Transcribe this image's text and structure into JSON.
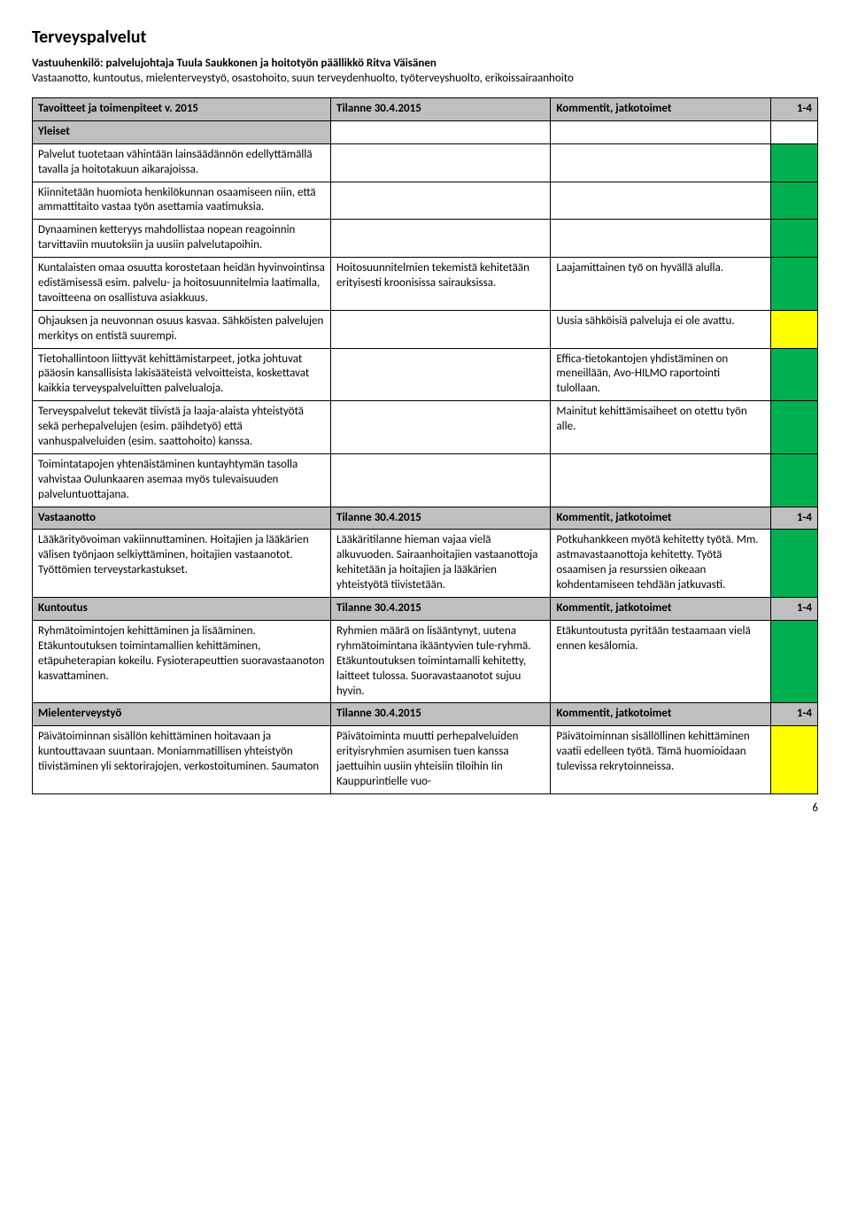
{
  "title": "Terveyspalvelut",
  "responsible_label": "Vastuuhenkilö: palvelujohtaja Tuula Saukkonen ja hoitotyön päällikkö Ritva Väisänen",
  "subtitle": "Vastaanotto, kuntoutus, mielenterveystyö, osastohoito, suun terveydenhuolto, työterveyshuolto, erikoissairaanhoito",
  "header": {
    "col1": "Tavoitteet ja toimenpiteet v. 2015",
    "col2": "Tilanne 30.4.2015",
    "col3": "Kommentit, jatkotoimet",
    "col4": "1-4"
  },
  "section_yleiset": "Yleiset",
  "yleiset_rows": [
    {
      "a": "Palvelut tuotetaan vähintään lainsäädännön edellyttämällä tavalla ja hoitotakuun aikarajoissa.",
      "b": "",
      "c": "",
      "color": "green"
    },
    {
      "a": "Kiinnitetään huomiota henkilökunnan osaamiseen niin, että ammattitaito vastaa työn asettamia vaatimuksia.",
      "b": "",
      "c": "",
      "color": "green"
    },
    {
      "a": "Dynaaminen ketteryys mahdollistaa nopean reagoinnin tarvittaviin muutoksiin ja uusiin palvelutapoihin.",
      "b": "",
      "c": "",
      "color": "green"
    },
    {
      "a": "Kuntalaisten omaa osuutta korostetaan heidän hyvinvointinsa edistämisessä esim. palvelu- ja hoitosuunnitelmia laatimalla, tavoitteena on osallistuva asiakkuus.",
      "b": "Hoitosuunnitelmien tekemistä kehitetään erityisesti kroonisissa sairauksissa.",
      "c": "Laajamittainen työ on hyvällä alulla.",
      "color": "green"
    },
    {
      "a": "Ohjauksen ja neuvonnan osuus kasvaa. Sähköisten palvelujen merkitys on entistä suurempi.",
      "b": "",
      "c": "Uusia sähköisiä palveluja ei ole avattu.",
      "color": "yellow"
    },
    {
      "a": "Tietohallintoon liittyvät kehittämistarpeet, jotka johtuvat pääosin kansallisista lakisääteistä velvoitteista, koskettavat kaikkia terveyspalveluitten palvelualoja.",
      "b": "",
      "c": "Effica-tietokantojen yhdistäminen on meneillään, Avo-HILMO raportointi tulollaan.",
      "color": "green"
    },
    {
      "a": "Terveyspalvelut tekevät tiivistä ja laaja-alaista yhteistyötä sekä perhepalvelujen (esim. päihdetyö) että vanhuspalveluiden (esim. saattohoito) kanssa.",
      "b": "",
      "c": "Mainitut kehittämisaiheet on otettu työn alle.",
      "color": "green"
    },
    {
      "a": "Toimintatapojen yhtenäistäminen kuntayhtymän tasolla vahvistaa Oulunkaaren asemaa myös tulevaisuuden palveluntuottajana.",
      "b": "",
      "c": "",
      "color": "green"
    }
  ],
  "section_vastaanotto": "Vastaanotto",
  "vastaanotto": {
    "a": "Lääkärityövoiman vakiinnuttaminen. Hoitajien ja lääkärien välisen työnjaon selkiyttäminen, hoitajien vastaanotot. Työttömien terveystarkastukset.",
    "b": "Lääkäritilanne hieman vajaa vielä alkuvuoden. Sairaanhoitajien vastaanottoja kehitetään ja hoitajien ja lääkärien yhteistyötä tiivistetään.",
    "c": "Potkuhankkeen myötä kehitetty työtä. Mm. astmavastaanottoja kehitetty. Työtä osaamisen ja resurssien oikeaan kohdentamiseen tehdään jatkuvasti.",
    "color": "green"
  },
  "section_kuntoutus": "Kuntoutus",
  "kuntoutus": {
    "a": "Ryhmätoimintojen kehittäminen ja lisääminen. Etäkuntoutuksen toimintamallien kehittäminen, etäpuheterapian kokeilu. Fysioterapeuttien suoravastaanoton kasvattaminen.",
    "b": "Ryhmien määrä on lisääntynyt, uutena ryhmätoimintana ikääntyvien tule-ryhmä. Etäkuntoutuksen toimintamalli kehitetty, laitteet tulossa. Suoravastaanotot sujuu hyvin.",
    "c": "Etäkuntoutusta pyritään testaamaan vielä ennen kesälomia.",
    "color": "green"
  },
  "section_mielenterveys": "Mielenterveystyö",
  "mielenterveys": {
    "a": "Päivätoiminnan sisällön kehittäminen hoitavaan ja kuntouttavaan suuntaan. Moniammatillisen yhteistyön tiivistäminen yli sektorirajojen, verkostoituminen. Saumaton",
    "b": "Päivätoiminta muutti perhepalveluiden erityisryhmien asumisen tuen kanssa jaettuihin uusiin yhteisiin tiloihin Iin Kauppurintielle vuo-",
    "c": "Päivätoiminnan sisällöllinen kehittäminen vaatii edelleen työtä. Tämä huomioidaan tulevissa rekrytoinneissa.",
    "color": "yellow"
  },
  "page_number": "6",
  "colors": {
    "green": "#00b050",
    "yellow": "#ffff00",
    "gray": "#bfbfbf"
  }
}
